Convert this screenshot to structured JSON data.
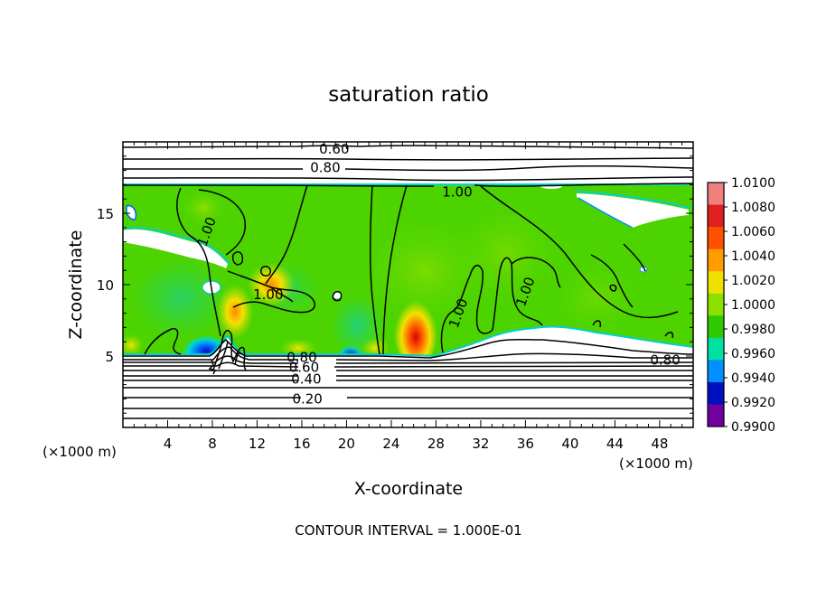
{
  "chart_data": {
    "type": "heatmap",
    "title": "saturation ratio",
    "xlabel": "X-coordinate",
    "ylabel": "Z-coordinate",
    "x_unit_left": "(×1000 m)",
    "x_unit_right": "(×1000 m)",
    "xlim": [
      0,
      51
    ],
    "ylim": [
      0,
      20
    ],
    "xticks": [
      "4",
      "8",
      "12",
      "16",
      "20",
      "24",
      "28",
      "32",
      "36",
      "40",
      "44",
      "48"
    ],
    "yticks": [
      "5",
      "10",
      "15"
    ],
    "footnote": "CONTOUR INTERVAL = 1.000E-01",
    "colorbar": {
      "levels": [
        "1.0100",
        "1.0080",
        "1.0060",
        "1.0040",
        "1.0020",
        "1.0000",
        "0.9980",
        "0.9960",
        "0.9940",
        "0.9920",
        "0.9900"
      ],
      "colors": [
        "#f08080",
        "#e02020",
        "#ff5000",
        "#ff9c00",
        "#f0e000",
        "#8ce000",
        "#30c800",
        "#00e0a0",
        "#0090ff",
        "#0010c0",
        "#7000a0"
      ]
    },
    "contour_labels": [
      {
        "text": "0.60",
        "x": 18.9,
        "y": 19.5
      },
      {
        "text": "0.80",
        "x": 18.1,
        "y": 18.2
      },
      {
        "text": "1.00",
        "x": 29.9,
        "y": 16.5
      },
      {
        "text": "1.00",
        "x": 7.5,
        "y": 13.7
      },
      {
        "text": "1.00",
        "x": 13.0,
        "y": 9.3
      },
      {
        "text": "1.00",
        "x": 30.0,
        "y": 8.0
      },
      {
        "text": "1.00",
        "x": 36.0,
        "y": 9.5
      },
      {
        "text": "0.80",
        "x": 16.0,
        "y": 4.9
      },
      {
        "text": "0.60",
        "x": 16.2,
        "y": 4.2
      },
      {
        "text": "0.40",
        "x": 16.4,
        "y": 3.4
      },
      {
        "text": "0.20",
        "x": 16.5,
        "y": 2.0
      },
      {
        "text": "0.80",
        "x": 48.5,
        "y": 4.7
      }
    ]
  }
}
